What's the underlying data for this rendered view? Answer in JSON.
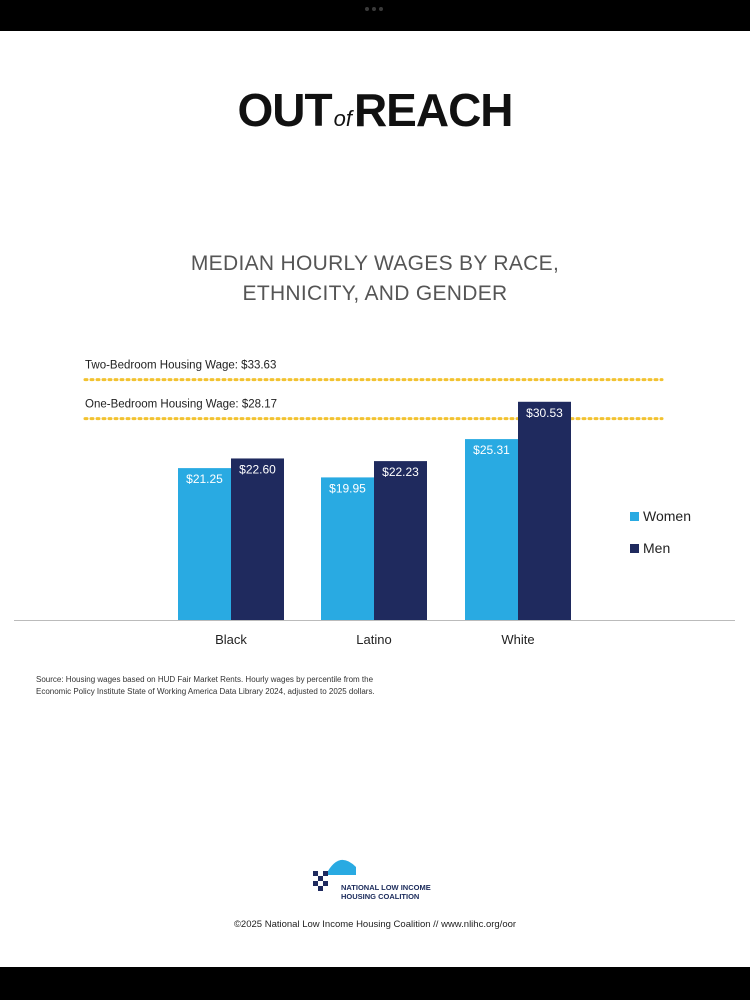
{
  "brand": {
    "out": "OUT",
    "of": "of",
    "reach": "REACH"
  },
  "chart_data": {
    "type": "bar",
    "title_lines": [
      "MEDIAN HOURLY WAGES BY RACE,",
      "ETHNICITY, AND GENDER"
    ],
    "categories": [
      "Black",
      "Latino",
      "White"
    ],
    "series": [
      {
        "name": "Women",
        "values": [
          21.25,
          19.95,
          25.31
        ],
        "labels": [
          "$21.25",
          "$19.95",
          "$25.31"
        ],
        "color": "#29aae2"
      },
      {
        "name": "Men",
        "values": [
          22.6,
          22.23,
          30.53
        ],
        "labels": [
          "$22.60",
          "$22.23",
          "$30.53"
        ],
        "color": "#1f2a5e"
      }
    ],
    "reference_lines": [
      {
        "label": "Two-Bedroom Housing Wage: $33.63",
        "value": 33.63
      },
      {
        "label": "One-Bedroom Housing Wage: $28.17",
        "value": 28.17
      }
    ],
    "reference_color": "#f2c230",
    "ylim": [
      0,
      40
    ],
    "legend_position": "right",
    "grid": false
  },
  "source": {
    "line1": "Source: Housing wages based on HUD Fair Market Rents. Hourly wages by percentile from the",
    "line2": "Economic Policy Institute State of Working America Data Library 2024, adjusted to 2025 dollars."
  },
  "logo": {
    "line1": "NATIONAL LOW INCOME",
    "line2": "HOUSING COALITION",
    "color": "#29aae2",
    "color2": "#1f2a5e"
  },
  "footer": "©2025 National Low Income Housing Coalition // www.nlihc.org/oor"
}
